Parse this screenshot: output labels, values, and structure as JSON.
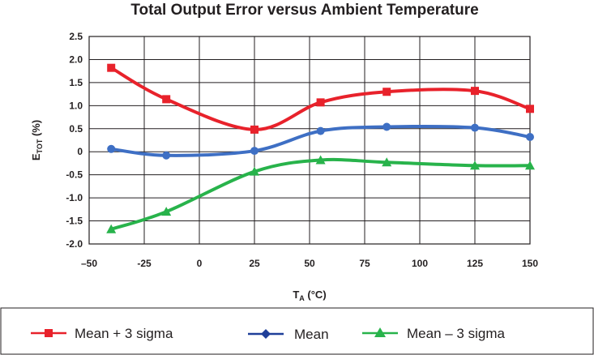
{
  "chart_data": {
    "type": "line",
    "title": "Total Output Error versus Ambient Temperature",
    "xlabel": {
      "main": "T",
      "sub": "A",
      "suffix": " (°C)"
    },
    "ylabel": {
      "main": "E",
      "sub": "TOT",
      "suffix": " (%)"
    },
    "xlim": [
      -50,
      150
    ],
    "ylim": [
      -2.0,
      2.5
    ],
    "x_ticks": [
      -50,
      -25,
      0,
      25,
      50,
      75,
      100,
      125,
      150
    ],
    "x_tick_labels": [
      "–50",
      "-25",
      "0",
      "25",
      "50",
      "75",
      "100",
      "125",
      "150"
    ],
    "y_ticks": [
      2.5,
      2.0,
      1.5,
      1.0,
      0.5,
      0,
      -0.5,
      -1.0,
      -1.5,
      -2.0
    ],
    "y_tick_labels": [
      "2.5",
      "2.0",
      "1.5",
      "1.0",
      "0.5",
      "0",
      "-0.5",
      "-1.0",
      "-1.5",
      "-2.0"
    ],
    "grid": true,
    "legend_position": "bottom",
    "series": [
      {
        "name": "Mean + 3 sigma",
        "color": "#e8222b",
        "marker": "square",
        "x": [
          -40,
          -15,
          25,
          55,
          85,
          125,
          150
        ],
        "y": [
          1.82,
          1.14,
          0.48,
          1.07,
          1.3,
          1.32,
          0.93
        ]
      },
      {
        "name": "Mean",
        "color": "#3e6fc4",
        "marker": "diamond",
        "x": [
          -40,
          -15,
          25,
          55,
          85,
          125,
          150
        ],
        "y": [
          0.06,
          -0.08,
          0.02,
          0.45,
          0.54,
          0.52,
          0.32
        ]
      },
      {
        "name": "Mean – 3 sigma",
        "color": "#28b34b",
        "marker": "triangle",
        "x": [
          -40,
          -15,
          25,
          55,
          85,
          125,
          150
        ],
        "y": [
          -1.68,
          -1.3,
          -0.43,
          -0.18,
          -0.23,
          -0.3,
          -0.3
        ]
      }
    ]
  },
  "legend_colors": {
    "mean_line": "#1f3f99",
    "mean_marker": "#1f3f99"
  }
}
